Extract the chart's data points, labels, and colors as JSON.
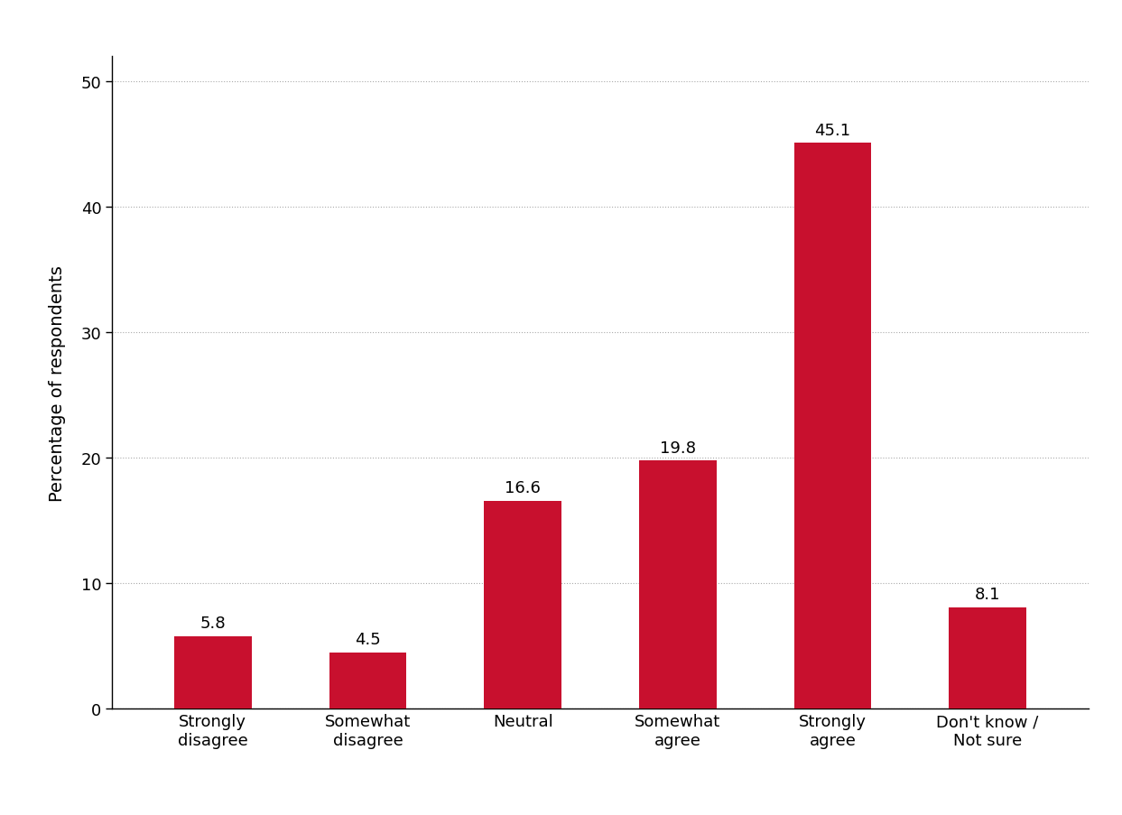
{
  "categories": [
    "Strongly\ndisagree",
    "Somewhat\ndisagree",
    "Neutral",
    "Somewhat\nagree",
    "Strongly\nagree",
    "Don't know /\nNot sure"
  ],
  "values": [
    5.8,
    4.5,
    16.6,
    19.8,
    45.1,
    8.1
  ],
  "bar_color": "#C8102E",
  "ylabel": "Percentage of respondents",
  "ylim": [
    0,
    52
  ],
  "yticks": [
    0,
    10,
    20,
    30,
    40,
    50
  ],
  "background_color": "#ffffff",
  "label_fontsize": 14,
  "tick_fontsize": 13,
  "bar_label_fontsize": 13,
  "bar_width": 0.5,
  "grid_color": "#aaaaaa",
  "grid_linewidth": 0.8
}
